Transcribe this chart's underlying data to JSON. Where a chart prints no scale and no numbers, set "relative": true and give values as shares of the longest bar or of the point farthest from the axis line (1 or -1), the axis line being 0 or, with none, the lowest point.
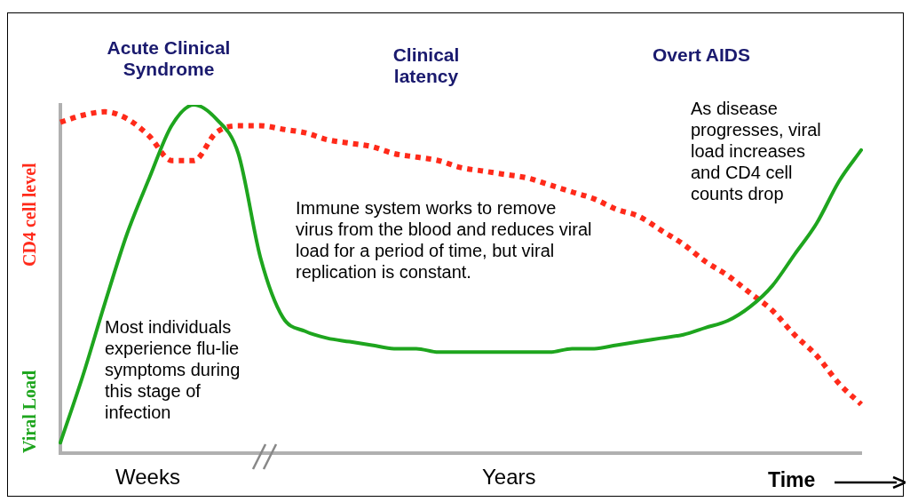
{
  "chart_data": {
    "type": "line",
    "relative": true,
    "xlabel": "Time",
    "legend": false,
    "grid": false,
    "marker": "none",
    "categories": [
      null,
      null,
      null,
      null,
      null,
      null,
      null,
      null,
      null,
      null,
      null,
      null,
      null,
      null,
      null,
      null,
      null,
      null,
      null,
      null,
      null,
      null,
      null,
      null,
      null,
      null,
      null,
      null,
      null,
      null,
      null,
      null,
      null,
      null,
      null,
      null,
      null
    ],
    "series": [
      {
        "name": "Viral Load",
        "color": "#1ea51e",
        "line_style": "solid",
        "values": [
          0.03,
          0.22,
          0.43,
          0.63,
          0.79,
          0.94,
          1.0,
          0.96,
          0.86,
          0.56,
          0.39,
          0.35,
          0.33,
          0.32,
          0.31,
          0.3,
          0.3,
          0.29,
          0.29,
          0.29,
          0.29,
          0.29,
          0.29,
          0.3,
          0.3,
          0.31,
          0.32,
          0.33,
          0.34,
          0.36,
          0.38,
          0.42,
          0.48,
          0.57,
          0.66,
          0.78,
          0.87
        ]
      },
      {
        "name": "CD4 cell level",
        "color": "#ff2a1a",
        "line_style": "dotted",
        "values": [
          0.95,
          0.97,
          0.98,
          0.96,
          0.91,
          0.84,
          0.84,
          0.92,
          0.94,
          0.94,
          0.93,
          0.92,
          0.9,
          0.89,
          0.88,
          0.86,
          0.85,
          0.84,
          0.82,
          0.81,
          0.8,
          0.79,
          0.77,
          0.75,
          0.73,
          0.7,
          0.68,
          0.64,
          0.6,
          0.55,
          0.51,
          0.46,
          0.41,
          0.34,
          0.28,
          0.2,
          0.14
        ]
      }
    ],
    "annotations": [
      "Acute Clinical Syndrome",
      "Clinical latency",
      "Overt AIDS",
      "Most individuals experience flu-lie symptoms during  this stage of infection",
      "Immune system works to remove virus from the blood and reduces viral load for a period of time, but viral replication is constant.",
      "As disease progresses, viral load increases and CD4 cell counts drop",
      "Weeks",
      "Years"
    ]
  }
}
